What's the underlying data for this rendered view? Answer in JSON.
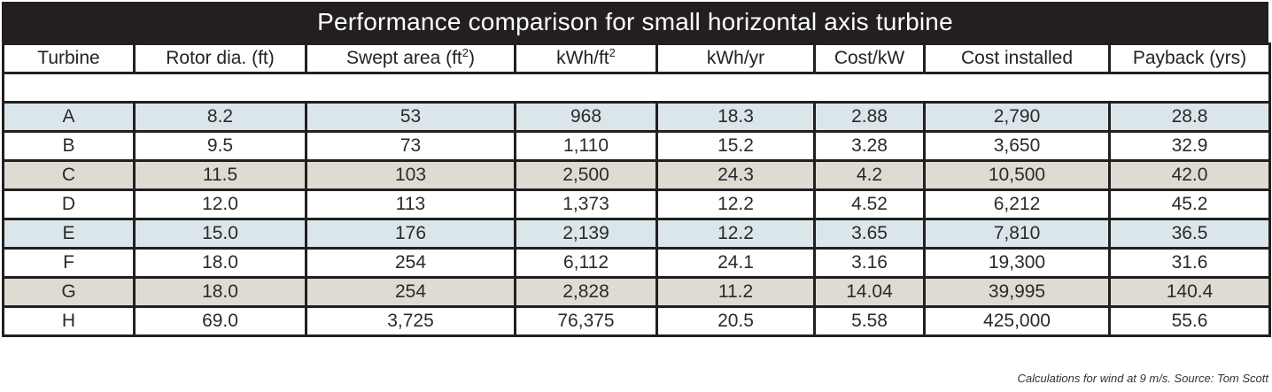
{
  "title": "Performance comparison for small horizontal axis turbine",
  "headers": [
    {
      "text": "Turbine",
      "sup": ""
    },
    {
      "text": "Rotor dia. (ft)",
      "sup": ""
    },
    {
      "text": "Swept area (ft",
      "sup": "2",
      "after": ")"
    },
    {
      "text": "kWh/ft",
      "sup": "2",
      "after": ""
    },
    {
      "text": "kWh/yr",
      "sup": ""
    },
    {
      "text": "Cost/kW",
      "sup": ""
    },
    {
      "text": "Cost installed",
      "sup": ""
    },
    {
      "text": "Payback (yrs)",
      "sup": ""
    }
  ],
  "rows": [
    {
      "shade": "blue",
      "cells": [
        "A",
        "8.2",
        "53",
        "968",
        "18.3",
        "2.88",
        "2,790",
        "28.8"
      ]
    },
    {
      "shade": "white",
      "cells": [
        "B",
        "9.5",
        "73",
        "1,110",
        "15.2",
        "3.28",
        "3,650",
        "32.9"
      ]
    },
    {
      "shade": "tan",
      "cells": [
        "C",
        "11.5",
        "103",
        "2,500",
        "24.3",
        "4.2",
        "10,500",
        "42.0"
      ]
    },
    {
      "shade": "white",
      "cells": [
        "D",
        "12.0",
        "113",
        "1,373",
        "12.2",
        "4.52",
        "6,212",
        "45.2"
      ]
    },
    {
      "shade": "blue",
      "cells": [
        "E",
        "15.0",
        "176",
        "2,139",
        "12.2",
        "3.65",
        "7,810",
        "36.5"
      ]
    },
    {
      "shade": "white",
      "cells": [
        "F",
        "18.0",
        "254",
        "6,112",
        "24.1",
        "3.16",
        "19,300",
        "31.6"
      ]
    },
    {
      "shade": "tan",
      "cells": [
        "G",
        "18.0",
        "254",
        "2,828",
        "11.2",
        "14.04",
        "39,995",
        "140.4"
      ]
    },
    {
      "shade": "white",
      "cells": [
        "H",
        "69.0",
        "3,725",
        "76,375",
        "20.5",
        "5.58",
        "425,000",
        "55.6"
      ]
    }
  ],
  "caption": "Calculations for wind at 9 m/s. Source: Tom Scott"
}
